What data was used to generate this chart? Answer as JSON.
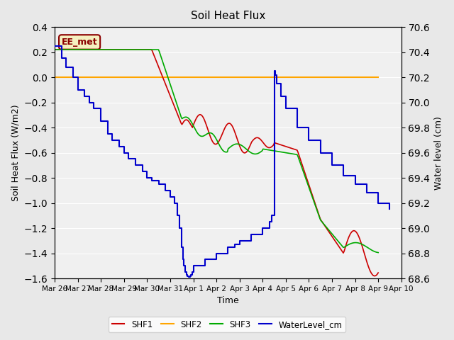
{
  "title": "Soil Heat Flux",
  "xlabel": "Time",
  "ylabel_left": "Soil Heat Flux (W/m2)",
  "ylabel_right": "Water level (cm)",
  "annotation": "EE_met",
  "ylim_left": [
    -1.6,
    0.4
  ],
  "ylim_right": [
    68.6,
    70.6
  ],
  "xtick_labels": [
    "Mar 26",
    "Mar 27",
    "Mar 28",
    "Mar 29",
    "Mar 30",
    "Mar 31",
    "Apr 1",
    "Apr 2",
    "Apr 3",
    "Apr 4",
    "Apr 5",
    "Apr 6",
    "Apr 7",
    "Apr 8",
    "Apr 9",
    "Apr 10"
  ],
  "yticks_left": [
    -1.6,
    -1.4,
    -1.2,
    -1.0,
    -0.8,
    -0.6,
    -0.4,
    -0.2,
    0.0,
    0.2,
    0.4
  ],
  "yticks_right": [
    68.6,
    68.8,
    69.0,
    69.2,
    69.4,
    69.6,
    69.8,
    70.0,
    70.2,
    70.4,
    70.6
  ],
  "bg_color": "#e8e8e8",
  "plot_bg_color": "#f0f0f0",
  "grid_color": "#ffffff",
  "shf1_color": "#cc0000",
  "shf2_color": "#ffa500",
  "shf3_color": "#00aa00",
  "wl_color": "#0000cc",
  "legend_labels": [
    "SHF1",
    "SHF2",
    "SHF3",
    "WaterLevel_cm"
  ],
  "num_days": 15,
  "steps_t": [
    0,
    0.3,
    0.5,
    0.8,
    1.0,
    1.3,
    1.5,
    1.7,
    2.0,
    2.3,
    2.5,
    2.8,
    3.0,
    3.2,
    3.5,
    3.8,
    4.0,
    4.2,
    4.5,
    4.8,
    5.0,
    5.2,
    5.3,
    5.4,
    5.5,
    5.55,
    5.6,
    5.65,
    5.7,
    5.75,
    5.8,
    5.85,
    5.9,
    5.95,
    6.0,
    6.5,
    7.0,
    7.5,
    7.8,
    8.0,
    8.5,
    9.0,
    9.3,
    9.4,
    9.5,
    9.55,
    9.6,
    9.8,
    10.0,
    10.5,
    11.0,
    11.5,
    12.0,
    12.5,
    13.0,
    13.5,
    14.0,
    14.5
  ],
  "steps_v": [
    70.45,
    70.35,
    70.28,
    70.2,
    70.1,
    70.05,
    70.0,
    69.95,
    69.85,
    69.75,
    69.7,
    69.65,
    69.6,
    69.55,
    69.5,
    69.45,
    69.4,
    69.38,
    69.35,
    69.3,
    69.25,
    69.2,
    69.1,
    69.0,
    68.85,
    68.75,
    68.7,
    68.65,
    68.63,
    68.62,
    68.61,
    68.62,
    68.63,
    68.65,
    68.7,
    68.75,
    68.8,
    68.85,
    68.87,
    68.9,
    68.95,
    69.0,
    69.05,
    69.1,
    70.25,
    70.22,
    70.15,
    70.05,
    69.95,
    69.8,
    69.7,
    69.6,
    69.5,
    69.42,
    69.35,
    69.28,
    69.2,
    69.15
  ]
}
